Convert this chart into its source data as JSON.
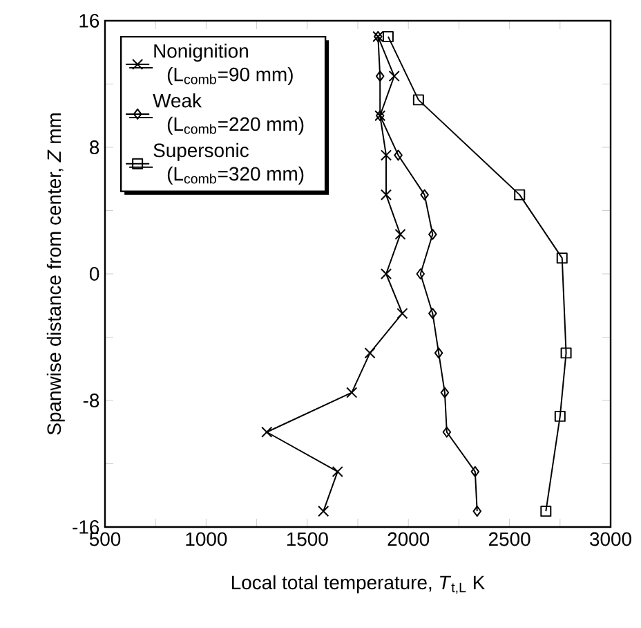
{
  "chart_data": {
    "type": "line",
    "xlabel": "Local total temperature, *T*$_{t,L}$ K",
    "ylabel": "Spanwise distance from center, *Z* mm",
    "xlim": [
      500,
      3000
    ],
    "ylim": [
      -16,
      16
    ],
    "xticks": [
      500,
      {
        "value": 750,
        "label": null
      },
      1000,
      {
        "value": 1250,
        "label": null
      },
      1500,
      {
        "value": 1750,
        "label": null
      },
      2000,
      {
        "value": 2250,
        "label": null
      },
      2500,
      {
        "value": 2750,
        "label": null
      },
      3000
    ],
    "yticks": [
      -16,
      {
        "value": -12,
        "label": null
      },
      -8,
      {
        "value": -4,
        "label": null
      },
      0,
      {
        "value": 4,
        "label": null
      },
      8,
      {
        "value": 12,
        "label": null
      },
      16
    ],
    "legend": "top left",
    "line_style": "solid",
    "grid": false,
    "series": [
      {
        "name": "Nonignition (L$_{comb}$=90 mm)",
        "color": "#000000",
        "marker": "cross",
        "x": [
          1850,
          1930,
          1860,
          1890,
          1890,
          1960,
          1890,
          1970,
          1810,
          1720,
          1300,
          1650,
          1580
        ],
        "values": [
          15,
          12.5,
          10,
          7.5,
          5,
          2.5,
          0,
          -2.5,
          -5,
          -7.5,
          -10,
          -12.5,
          -15
        ]
      },
      {
        "name": "Weak (L$_{comb}$=220 mm)",
        "color": "#000000",
        "marker": "diamond",
        "x": [
          1850,
          1860,
          1860,
          1950,
          2080,
          2120,
          2060,
          2120,
          2150,
          2180,
          2190,
          2330,
          2340
        ],
        "values": [
          15,
          12.5,
          10,
          7.5,
          5,
          2.5,
          0,
          -2.5,
          -5,
          -7.5,
          -10,
          -12.5,
          -15
        ]
      },
      {
        "name": "Supersonic (L$_{comb}$=320 mm)",
        "color": "#000000",
        "marker": "square",
        "x": [
          1900,
          2050,
          2550,
          2760,
          2780,
          2750,
          2680
        ],
        "values": [
          15,
          11,
          5,
          1,
          -5,
          -9,
          -15
        ]
      }
    ]
  }
}
